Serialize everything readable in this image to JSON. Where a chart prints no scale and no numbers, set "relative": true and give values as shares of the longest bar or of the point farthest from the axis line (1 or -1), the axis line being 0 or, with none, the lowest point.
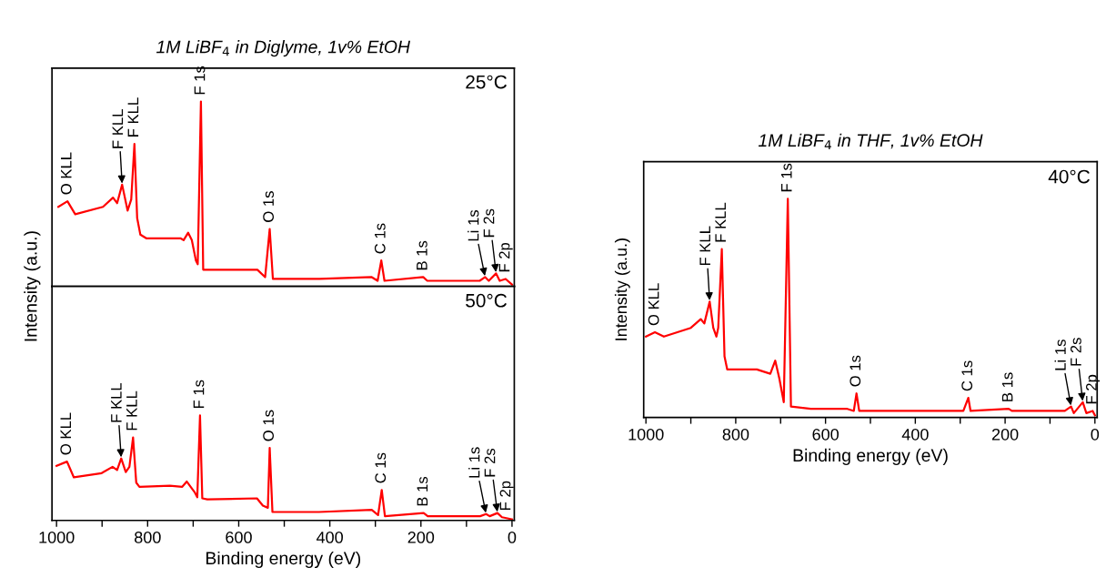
{
  "chart_data": [
    {
      "type": "line",
      "title": "1M LiBF$_{4}$ in Diglyme, 1v% EtOH",
      "ylabel": "Intensity (a.u.)",
      "relative": true,
      "tick_labels": false,
      "xlim": [
        1010,
        -5
      ],
      "xticks": [
        1000,
        {
          "value": 900,
          "label": null
        },
        800,
        {
          "value": 700,
          "label": null
        },
        600,
        {
          "value": 500,
          "label": null
        },
        400,
        {
          "value": 300,
          "label": null
        },
        200,
        {
          "value": 100,
          "label": null
        },
        0
      ],
      "x": [
        996,
        976,
        959,
        898,
        876,
        867,
        856,
        844,
        836,
        829,
        823,
        816,
        803,
        728,
        721,
        711,
        703,
        694,
        690,
        683,
        678,
        667,
        559,
        542,
        532,
        525,
        423,
        308,
        295,
        287,
        280,
        195,
        186,
        71,
        59,
        51,
        35,
        27,
        14,
        0
      ],
      "series": [
        {
          "color": "#ff0000",
          "values": [
            0.43,
            0.46,
            0.39,
            0.43,
            0.48,
            0.45,
            0.55,
            0.41,
            0.47,
            0.77,
            0.37,
            0.28,
            0.26,
            0.26,
            0.25,
            0.29,
            0.25,
            0.14,
            0.12,
            1,
            0.09,
            0.09,
            0.09,
            0.05,
            0.31,
            0.04,
            0.04,
            0.05,
            0.03,
            0.14,
            0.03,
            0.05,
            0.03,
            0.03,
            0.05,
            0.03,
            0.07,
            0.03,
            0.04,
            0.01
          ]
        }
      ],
      "annotations": [
        {
          "text": "O KLL",
          "x": 976,
          "y": 0.46
        },
        {
          "text": "F KLL",
          "x": 856,
          "y": 0.55
        },
        {
          "text": "F KLL",
          "x": 829,
          "y": 0.77
        },
        {
          "text": "F 1s",
          "x": 683,
          "y": 1
        },
        {
          "text": "O 1s",
          "x": 532,
          "y": 0.31
        },
        {
          "text": "C 1s",
          "x": 287,
          "y": 0.14
        },
        {
          "text": "B 1s",
          "x": 195,
          "y": 0.05
        },
        {
          "text": "Li 1s",
          "x": 59,
          "y": 0.05
        },
        {
          "text": "F 2s",
          "x": 35,
          "y": 0.07
        },
        {
          "text": "F 2p",
          "x": 14,
          "y": 0.04
        },
        "25°C"
      ]
    },
    {
      "type": "line",
      "xlabel": "Binding energy (eV)",
      "relative": true,
      "tick_labels": "x",
      "xlim": [
        1010,
        -5
      ],
      "xticks": [
        1000,
        {
          "value": 900,
          "label": null
        },
        800,
        {
          "value": 700,
          "label": null
        },
        600,
        {
          "value": 500,
          "label": null
        },
        400,
        {
          "value": 300,
          "label": null
        },
        200,
        {
          "value": 100,
          "label": null
        },
        0
      ],
      "x": [
        1000,
        977,
        962,
        901,
        877,
        867,
        858,
        848,
        840,
        832,
        825,
        818,
        751,
        724,
        714,
        697,
        691,
        685,
        680,
        669,
        560,
        547,
        536,
        532,
        526,
        424,
        308,
        294,
        286,
        279,
        194,
        185,
        70,
        57,
        49,
        32,
        22,
        0
      ],
      "series": [
        {
          "color": "#ff0000",
          "values": [
            0.52,
            0.56,
            0.41,
            0.45,
            0.51,
            0.48,
            0.59,
            0.46,
            0.51,
            0.79,
            0.36,
            0.32,
            0.33,
            0.32,
            0.37,
            0.27,
            0.22,
            1,
            0.21,
            0.2,
            0.21,
            0.14,
            0.12,
            0.69,
            0.08,
            0.08,
            0.1,
            0.05,
            0.29,
            0.04,
            0.07,
            0.04,
            0.04,
            0.06,
            0.04,
            0.07,
            0.03,
            0.01
          ]
        }
      ],
      "annotations": [
        {
          "text": "O KLL",
          "x": 977,
          "y": 0.56
        },
        {
          "text": "F KLL",
          "x": 858,
          "y": 0.59
        },
        {
          "text": "F KLL",
          "x": 832,
          "y": 0.79
        },
        {
          "text": "F 1s",
          "x": 685,
          "y": 1
        },
        {
          "text": "O 1s",
          "x": 532,
          "y": 0.69
        },
        {
          "text": "C 1s",
          "x": 286,
          "y": 0.29
        },
        {
          "text": "B 1s",
          "x": 194,
          "y": 0.07
        },
        {
          "text": "Li 1s",
          "x": 57,
          "y": 0.06
        },
        {
          "text": "F 2s",
          "x": 32,
          "y": 0.07
        },
        {
          "text": "F 2p",
          "x": 12,
          "y": 0.03
        },
        "50°C"
      ]
    },
    {
      "type": "line",
      "title": "1M LiBF$_{4}$ in THF, 1v% EtOH",
      "xlabel": "Binding energy (eV)",
      "ylabel": "Intensity (a.u.)",
      "relative": true,
      "tick_labels": "x",
      "xlim": [
        1005,
        -5
      ],
      "xticks": [
        1000,
        {
          "value": 900,
          "label": null
        },
        800,
        {
          "value": 700,
          "label": null
        },
        600,
        {
          "value": 500,
          "label": null
        },
        400,
        {
          "value": 300,
          "label": null
        },
        200,
        {
          "value": 100,
          "label": null
        },
        0
      ],
      "x": [
        1000,
        980,
        960,
        900,
        878,
        870,
        858,
        850,
        843,
        839,
        831,
        825,
        819,
        753,
        723,
        712,
        703,
        693,
        684,
        677,
        633,
        553,
        537,
        531,
        525,
        367,
        293,
        282,
        277,
        192,
        185,
        67,
        53,
        47,
        27,
        19,
        5,
        0
      ],
      "series": [
        {
          "color": "#ff0000",
          "values": [
            0.37,
            0.39,
            0.37,
            0.41,
            0.45,
            0.43,
            0.53,
            0.41,
            0.37,
            0.41,
            0.77,
            0.28,
            0.22,
            0.22,
            0.2,
            0.26,
            0.18,
            0.07,
            1,
            0.05,
            0.04,
            0.04,
            0.03,
            0.11,
            0.03,
            0.03,
            0.03,
            0.09,
            0.03,
            0.04,
            0.03,
            0.03,
            0.05,
            0.02,
            0.07,
            0.02,
            0.03,
            0.01
          ]
        }
      ],
      "annotations": [
        {
          "text": "O KLL",
          "x": 980,
          "y": 0.39
        },
        {
          "text": "F KLL",
          "x": 858,
          "y": 0.53
        },
        {
          "text": "F KLL",
          "x": 831,
          "y": 0.77
        },
        {
          "text": "F 1s",
          "x": 684,
          "y": 1
        },
        {
          "text": "O 1s",
          "x": 531,
          "y": 0.11
        },
        {
          "text": "C 1s",
          "x": 282,
          "y": 0.09
        },
        {
          "text": "B 1s",
          "x": 192,
          "y": 0.04
        },
        {
          "text": "Li 1s",
          "x": 53,
          "y": 0.05
        },
        {
          "text": "F 2s",
          "x": 27,
          "y": 0.07
        },
        {
          "text": "F 2p",
          "x": 5,
          "y": 0.03
        },
        "40°C"
      ]
    }
  ]
}
